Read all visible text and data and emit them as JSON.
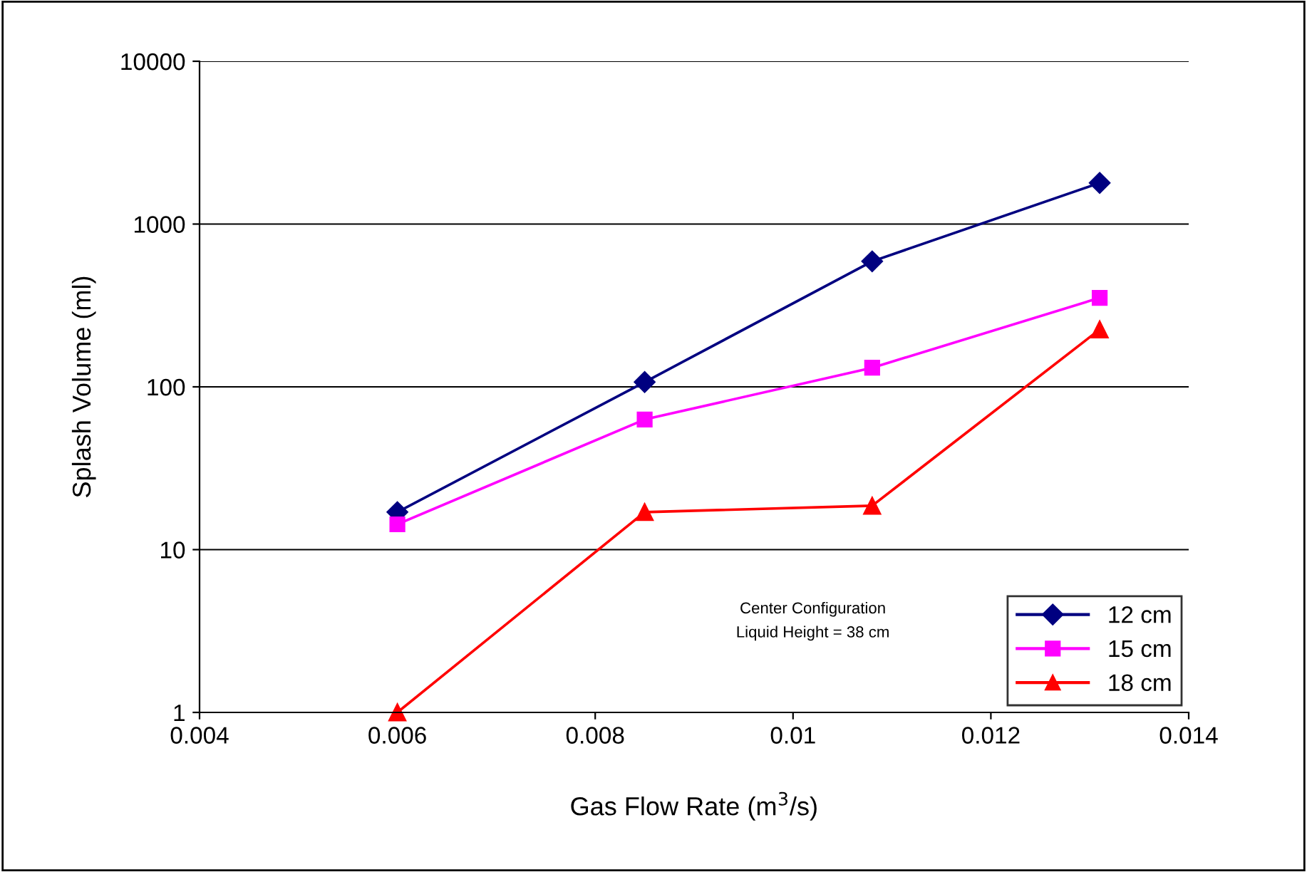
{
  "chart_data": {
    "type": "line",
    "xlabel": "Gas Flow Rate (m$^{3}$/s)",
    "ylabel": "Splash Volume (ml)",
    "x": [
      0.006,
      0.0085,
      0.0108,
      0.0131
    ],
    "series": [
      {
        "name": "12 cm",
        "color": "#000080",
        "marker": "diamond",
        "values": [
          17,
          107,
          590,
          1790
        ]
      },
      {
        "name": "15 cm",
        "color": "#ff00ff",
        "marker": "square",
        "values": [
          14.3,
          63,
          131,
          352
        ]
      },
      {
        "name": "18 cm",
        "color": "#ff0000",
        "marker": "triangle",
        "values": [
          1,
          17,
          18.6,
          225
        ]
      }
    ],
    "log": "y",
    "xlim": [
      0.004,
      0.014
    ],
    "xticks": [
      0.004,
      0.006,
      0.008,
      0.01,
      0.012,
      0.014
    ],
    "ylim": [
      1,
      10000
    ],
    "yticks": [
      1,
      10,
      100,
      1000,
      10000
    ],
    "grid": "y",
    "legend": "bottom right",
    "annotations": [
      "Center Configuration\nLiquid Height = 38 cm"
    ]
  }
}
